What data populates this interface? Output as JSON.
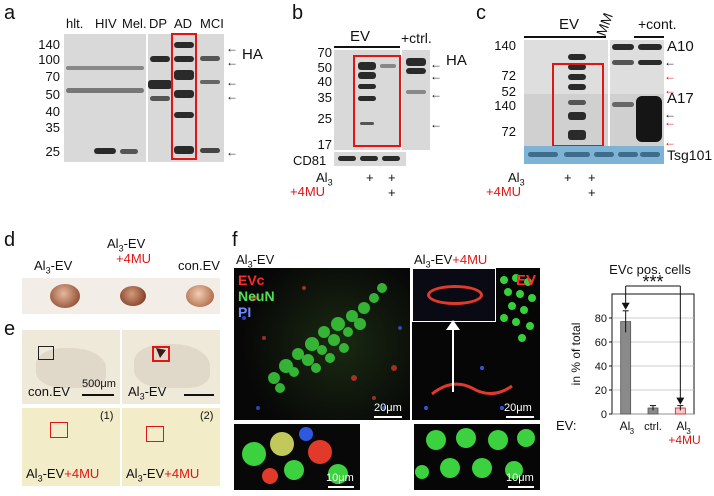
{
  "panels": {
    "a": {
      "letter": "a",
      "lanes": [
        "hlt.",
        "HIV",
        "Mel.",
        "DP",
        "AD",
        "MCI"
      ],
      "mw": [
        "140",
        "100",
        "70",
        "50",
        "40",
        "35",
        "25"
      ],
      "label_HA": "HA"
    },
    "b": {
      "letter": "b",
      "header_ev": "EV",
      "header_ctrl": "+ctrl.",
      "mw": [
        "70",
        "50",
        "40",
        "35",
        "25",
        "17"
      ],
      "label_HA": "HA",
      "loading": "CD81",
      "row1_label": "Al",
      "row1_sub": "3",
      "row1_vals": [
        "+",
        "+"
      ],
      "row2_label": "+4MU",
      "row2_vals": [
        "+"
      ]
    },
    "c": {
      "letter": "c",
      "header_ev": "EV",
      "header_mm": "MM",
      "header_cont": "+cont.",
      "mw_top": [
        "140",
        "72",
        "52"
      ],
      "mw_bottom": [
        "140",
        "72"
      ],
      "label_a10": "A10",
      "label_a17": "A17",
      "loading": "Tsg101",
      "row1_label": "Al",
      "row1_sub": "3",
      "row1_vals": [
        "+",
        "+"
      ],
      "row2_label": "+4MU",
      "row2_vals": [
        "+"
      ]
    },
    "d": {
      "letter": "d",
      "labels": [
        {
          "main": "Al",
          "sub": "3",
          "tail": "-EV",
          "extra": ""
        },
        {
          "main": "Al",
          "sub": "3",
          "tail": "-EV",
          "extra": "+4MU"
        },
        {
          "main": "con.EV",
          "sub": "",
          "tail": "",
          "extra": ""
        }
      ]
    },
    "e": {
      "letter": "e",
      "tiles": [
        {
          "label": "con.EV",
          "sub": "",
          "extra": "",
          "scale": "500μm",
          "num": ""
        },
        {
          "label": "Al",
          "sub": "3",
          "tail": "-EV",
          "extra": "",
          "num": ""
        },
        {
          "label": "Al",
          "sub": "3",
          "tail": "-EV",
          "extra": "+4MU",
          "num": "(1)"
        },
        {
          "label": "Al",
          "sub": "3",
          "tail": "-EV",
          "extra": "+4MU",
          "num": "(2)"
        }
      ]
    },
    "f": {
      "letter": "f",
      "left_title": "Al",
      "left_sub": "3",
      "left_tail": "-EV",
      "right_title": "Al",
      "right_sub": "3",
      "right_tail": "-EV",
      "right_extra": "+4MU",
      "ch_evc": "EVc",
      "ch_neun": "NeuN",
      "ch_pi": "PI",
      "ev_label": "EV",
      "scale_top_left": "20μm",
      "scale_top_right": "20μm",
      "scale_bot_left": "10μm",
      "scale_bot_right": "10μm"
    }
  },
  "chart_data": {
    "type": "bar",
    "title": "EVc pos. cells",
    "ylabel": "in % of total",
    "ylim": [
      0,
      100
    ],
    "yticks": [
      0,
      20,
      40,
      60,
      80
    ],
    "categories": [
      "Al3",
      "ctrl.",
      "Al3 +4MU"
    ],
    "values": [
      77,
      5,
      5
    ],
    "errors": [
      9,
      2,
      2
    ],
    "bar_colors": [
      "#8a8a8a",
      "#8a8a8a",
      "#f1c9c9"
    ],
    "significance": "***",
    "x_prefix": "EV:",
    "tick_labels": {
      "al": "Al",
      "sub": "3",
      "ctrl": "ctrl.",
      "mu": "+4MU"
    }
  }
}
